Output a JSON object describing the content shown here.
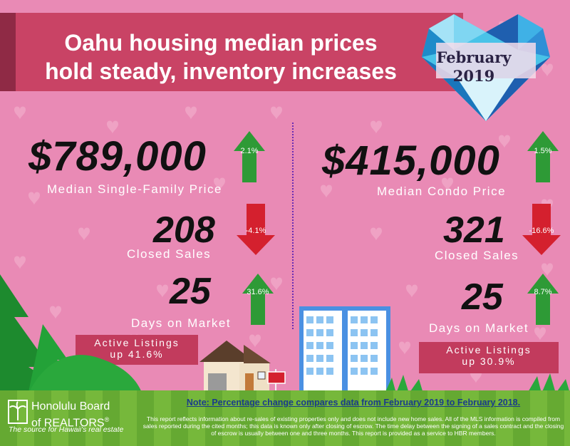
{
  "title": {
    "line1": "Oahu housing median prices",
    "line2": "hold steady, inventory increases"
  },
  "badge": {
    "month": "February",
    "year": "2019"
  },
  "single_family": {
    "price": "$789,000",
    "price_label": "Median Single-Family Price",
    "price_change": "2.1%",
    "closed_sales": "208",
    "closed_label": "Closed Sales",
    "closed_change": "-4.1%",
    "days": "25",
    "days_label": "Days on Market",
    "days_change": "31.6%",
    "listings_line1": "Active Listings",
    "listings_line2": "up 41.6%"
  },
  "condo": {
    "price": "$415,000",
    "price_label": "Median Condo Price",
    "price_change": "1.5%",
    "closed_sales": "321",
    "closed_label": "Closed Sales",
    "closed_change": "-16.6%",
    "days": "25",
    "days_label": "Days on Market",
    "days_change": "8.7%",
    "listings_line1": "Active Listings",
    "listings_line2": "up 30.9%"
  },
  "footer": {
    "logo_line1": "Honolulu Board",
    "logo_line2": "of REALTORS",
    "logo_reg": "®",
    "tagline": "The source for Hawaii's real estate",
    "note": "Note: Percentage change compares data from February 2019 to February 2018.",
    "disclaimer": "This report reflects information about re-sales of existing properties only and does not include new home sales. All of the MLS information is compiled from sales reported during the cited months; this data is known only after closing of escrow. The time delay between the signing of a sales contract and the closing of escrow is usually between one and three months. This report is provided as a service to HBR members."
  },
  "colors": {
    "background": "#e98ab5",
    "title_band": "#c94365",
    "arrow_up": "#2e9a36",
    "arrow_down": "#d4202e",
    "footer": "#76b83b"
  }
}
